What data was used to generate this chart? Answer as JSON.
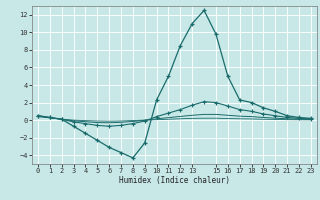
{
  "title": "",
  "xlabel": "Humidex (Indice chaleur)",
  "bg_color": "#c8e8e8",
  "grid_color": "#ffffff",
  "line_color": "#1a6b6b",
  "xlim": [
    -0.5,
    23.5
  ],
  "ylim": [
    -5,
    13
  ],
  "yticks": [
    -4,
    -2,
    0,
    2,
    4,
    6,
    8,
    10,
    12
  ],
  "xticks": [
    0,
    1,
    2,
    3,
    4,
    5,
    6,
    7,
    8,
    9,
    10,
    11,
    12,
    13,
    15,
    16,
    17,
    18,
    19,
    20,
    21,
    22,
    23
  ],
  "curve1_x": [
    0,
    1,
    2,
    3,
    4,
    5,
    6,
    7,
    8,
    9,
    10,
    11,
    12,
    13,
    14,
    15,
    16,
    17,
    18,
    19,
    20,
    21,
    22,
    23
  ],
  "curve1_y": [
    0.5,
    0.3,
    0.1,
    -0.7,
    -1.5,
    -2.3,
    -3.1,
    -3.7,
    -4.3,
    -2.6,
    2.3,
    5.0,
    8.5,
    11.0,
    12.5,
    9.8,
    5.0,
    2.3,
    2.0,
    1.4,
    1.0,
    0.5,
    0.3,
    0.2
  ],
  "curve2_x": [
    0,
    1,
    2,
    3,
    4,
    5,
    6,
    7,
    8,
    9,
    10,
    11,
    12,
    13,
    14,
    15,
    16,
    17,
    18,
    19,
    20,
    21,
    22,
    23
  ],
  "curve2_y": [
    0.5,
    0.3,
    0.1,
    -0.2,
    -0.4,
    -0.6,
    -0.7,
    -0.6,
    -0.4,
    -0.1,
    0.4,
    0.8,
    1.2,
    1.7,
    2.1,
    2.0,
    1.6,
    1.2,
    1.0,
    0.7,
    0.5,
    0.3,
    0.2,
    0.15
  ],
  "curve3_x": [
    0,
    1,
    2,
    3,
    4,
    5,
    6,
    7,
    8,
    9,
    10,
    11,
    12,
    13,
    14,
    15,
    16,
    17,
    18,
    19,
    20,
    21,
    22,
    23
  ],
  "curve3_y": [
    0.45,
    0.28,
    0.1,
    -0.08,
    -0.18,
    -0.28,
    -0.3,
    -0.25,
    -0.15,
    -0.02,
    0.15,
    0.28,
    0.42,
    0.55,
    0.65,
    0.65,
    0.55,
    0.45,
    0.4,
    0.3,
    0.22,
    0.15,
    0.1,
    0.08
  ],
  "curve4_x": [
    0,
    1,
    2,
    3,
    4,
    5,
    6,
    7,
    8,
    9,
    10,
    11,
    12,
    13,
    14,
    15,
    16,
    17,
    18,
    19,
    20,
    21,
    22,
    23
  ],
  "curve4_y": [
    0.4,
    0.25,
    0.1,
    0.0,
    -0.06,
    -0.1,
    -0.12,
    -0.1,
    -0.05,
    0.0,
    0.05,
    0.1,
    0.15,
    0.2,
    0.22,
    0.22,
    0.18,
    0.15,
    0.13,
    0.1,
    0.08,
    0.05,
    0.04,
    0.03
  ]
}
